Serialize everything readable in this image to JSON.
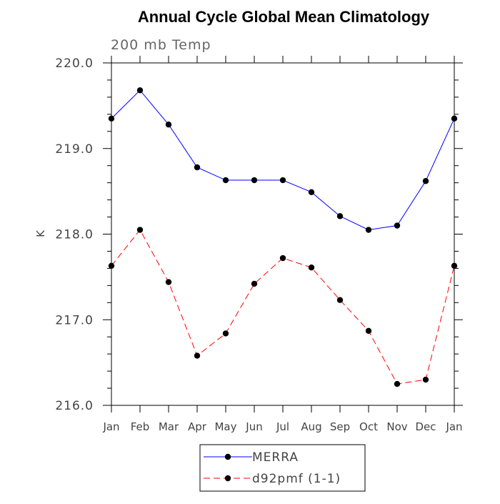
{
  "chart_data": {
    "type": "line",
    "title": "Annual Cycle Global Mean Climatology",
    "subtitle": "200 mb Temp",
    "xlabel": "",
    "ylabel": "K",
    "categories": [
      "Jan",
      "Feb",
      "Mar",
      "Apr",
      "May",
      "Jun",
      "Jul",
      "Aug",
      "Sep",
      "Oct",
      "Nov",
      "Dec",
      "Jan"
    ],
    "ylim": [
      216.0,
      220.0
    ],
    "yticks": [
      216.0,
      217.0,
      218.0,
      219.0,
      220.0
    ],
    "ytick_labels": [
      "216.0",
      "217.0",
      "218.0",
      "219.0",
      "220.0"
    ],
    "grid": false,
    "legend_position": "bottom-center",
    "series": [
      {
        "name": "MERRA",
        "color": "#0000ff",
        "line_style": "solid",
        "marker": "circle",
        "values": [
          219.35,
          219.68,
          219.28,
          218.78,
          218.63,
          218.63,
          218.63,
          218.49,
          218.21,
          218.05,
          218.1,
          218.62,
          219.35
        ]
      },
      {
        "name": "d92pmf (1-1)",
        "color": "#ff0000",
        "line_style": "dashed",
        "marker": "circle",
        "values": [
          217.63,
          218.05,
          217.44,
          216.58,
          216.84,
          217.42,
          217.72,
          217.61,
          217.23,
          216.87,
          216.25,
          216.3,
          217.63
        ]
      }
    ]
  }
}
